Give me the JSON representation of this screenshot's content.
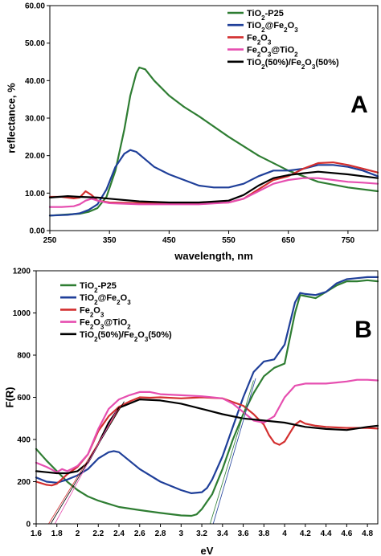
{
  "chart_data": [
    {
      "type": "line",
      "panel_label": "A",
      "xlabel": "wavelength, nm",
      "ylabel": "reflectance, %",
      "xlim": [
        250,
        800
      ],
      "ylim": [
        0,
        60
      ],
      "xticks": [
        250,
        350,
        450,
        550,
        650,
        750
      ],
      "xtick_labels": [
        "250",
        "350",
        "450",
        "550",
        "650",
        "750"
      ],
      "yticks": [
        0,
        10,
        20,
        30,
        40,
        50,
        60
      ],
      "ytick_labels": [
        "0.00",
        "10.00",
        "20.00",
        "30.00",
        "40.00",
        "50.00",
        "60.00"
      ],
      "grid": false,
      "legend_position": "top-right",
      "series": [
        {
          "name": "TiO2-P25",
          "name_base": "TiO",
          "name_sub": "2",
          "name_rest": "-P25",
          "color": "#2e7d32",
          "x": [
            250,
            270,
            300,
            315,
            330,
            345,
            360,
            375,
            385,
            395,
            400,
            410,
            425,
            450,
            475,
            500,
            550,
            600,
            650,
            700,
            750,
            800
          ],
          "y": [
            4,
            4.2,
            4.5,
            5,
            6,
            9,
            16,
            27,
            36,
            42,
            43.5,
            43,
            40,
            36,
            33,
            30.5,
            25,
            20,
            16,
            13,
            11.5,
            10.5
          ]
        },
        {
          "name": "TiO2@Fe2O3",
          "name_base": "TiO",
          "name_sub": "2",
          "name_rest": "@Fe",
          "name_sub2": "2",
          "name_rest2": "O",
          "name_sub3": "3",
          "color": "#1f3f99",
          "x": [
            250,
            280,
            300,
            315,
            330,
            345,
            360,
            375,
            385,
            395,
            410,
            425,
            450,
            475,
            500,
            525,
            550,
            575,
            600,
            625,
            650,
            675,
            700,
            725,
            750,
            775,
            800
          ],
          "y": [
            4,
            4.2,
            4.6,
            5.5,
            7,
            11,
            17,
            20.5,
            21.5,
            21,
            19,
            17,
            15,
            13.5,
            12,
            11.5,
            11.5,
            12.5,
            14.5,
            16,
            16,
            16.5,
            17.5,
            17.5,
            17,
            16,
            14.5
          ]
        },
        {
          "name": "Fe2O3",
          "name_base": "Fe",
          "name_sub": "2",
          "name_rest": "O",
          "name_sub2": "3",
          "color": "#d32f2f",
          "x": [
            250,
            270,
            290,
            300,
            310,
            320,
            330,
            350,
            400,
            450,
            500,
            550,
            575,
            600,
            625,
            650,
            675,
            700,
            725,
            750,
            775,
            800
          ],
          "y": [
            9,
            9,
            8.6,
            8.8,
            10.5,
            9.5,
            8,
            7.5,
            7.3,
            7.2,
            7.2,
            7.5,
            8.5,
            11,
            13.5,
            14.5,
            16.5,
            18,
            18.2,
            17.5,
            16.5,
            15.5
          ]
        },
        {
          "name": "Fe2O3@TiO2",
          "name_base": "Fe",
          "name_sub": "2",
          "name_rest": "O",
          "name_sub2": "3",
          "name_rest2": "@TiO",
          "name_sub3": "2",
          "color": "#e64fb0",
          "x": [
            250,
            270,
            290,
            300,
            310,
            320,
            330,
            350,
            400,
            450,
            500,
            550,
            575,
            600,
            625,
            650,
            675,
            700,
            725,
            750,
            775,
            800
          ],
          "y": [
            6.3,
            6.3,
            6.5,
            7,
            8,
            8.5,
            8,
            7.3,
            7,
            7,
            7,
            7.5,
            8.5,
            10.5,
            12.5,
            13.5,
            14,
            14,
            13.5,
            13,
            12.8,
            12.5
          ]
        },
        {
          "name": "TiO2(50%)/Fe2O3(50%)",
          "name_base": "TiO",
          "name_sub": "2",
          "name_rest": "(50%)/Fe",
          "name_sub2": "2",
          "name_rest2": "O",
          "name_sub3": "3",
          "name_rest3": "(50%)",
          "color": "#000000",
          "x": [
            250,
            280,
            300,
            330,
            350,
            400,
            450,
            500,
            550,
            575,
            600,
            625,
            650,
            675,
            700,
            750,
            800
          ],
          "y": [
            8.8,
            9.2,
            9,
            8.8,
            8.5,
            7.8,
            7.5,
            7.5,
            8,
            9.5,
            12,
            14,
            14.8,
            15.3,
            15.7,
            15,
            14
          ]
        }
      ]
    },
    {
      "type": "line",
      "panel_label": "B",
      "xlabel": "eV",
      "ylabel": "F(R)",
      "xlim": [
        1.6,
        4.9
      ],
      "ylim": [
        0,
        1200
      ],
      "xticks": [
        1.6,
        1.8,
        2,
        2.2,
        2.4,
        2.6,
        2.8,
        3,
        3.2,
        3.4,
        3.6,
        3.8,
        4,
        4.2,
        4.4,
        4.6,
        4.8
      ],
      "xtick_labels": [
        "1.6",
        "1.8",
        "2",
        "2.2",
        "2.4",
        "2.6",
        "2.8",
        "3",
        "3.2",
        "3.4",
        "3.6",
        "3.8",
        "4",
        "4.2",
        "4.4",
        "4.6",
        "4.8"
      ],
      "yticks": [
        0,
        200,
        400,
        600,
        800,
        1000,
        1200
      ],
      "ytick_labels": [
        "0",
        "200",
        "400",
        "600",
        "800",
        "1000",
        "1200"
      ],
      "grid": false,
      "legend_position": "top-left",
      "series": [
        {
          "name": "TiO2-P25",
          "name_base": "TiO",
          "name_sub": "2",
          "name_rest": "-P25",
          "color": "#2e7d32",
          "x": [
            1.6,
            1.7,
            1.8,
            1.9,
            2,
            2.1,
            2.2,
            2.4,
            2.6,
            2.8,
            3,
            3.1,
            3.15,
            3.2,
            3.3,
            3.4,
            3.5,
            3.6,
            3.7,
            3.8,
            3.9,
            4,
            4.1,
            4.15,
            4.2,
            4.3,
            4.4,
            4.5,
            4.6,
            4.7,
            4.8,
            4.9
          ],
          "y": [
            355,
            300,
            250,
            200,
            160,
            130,
            110,
            80,
            65,
            52,
            40,
            38,
            45,
            70,
            140,
            260,
            400,
            520,
            620,
            700,
            740,
            760,
            1000,
            1085,
            1080,
            1070,
            1100,
            1130,
            1150,
            1150,
            1155,
            1150
          ]
        },
        {
          "name": "TiO2@Fe2O3",
          "name_base": "TiO",
          "name_sub": "2",
          "name_rest": "@Fe",
          "name_sub2": "2",
          "name_rest2": "O",
          "name_sub3": "3",
          "color": "#1f3f99",
          "x": [
            1.6,
            1.7,
            1.8,
            1.9,
            2,
            2.1,
            2.2,
            2.3,
            2.35,
            2.4,
            2.5,
            2.6,
            2.8,
            3,
            3.1,
            3.2,
            3.25,
            3.3,
            3.4,
            3.5,
            3.6,
            3.7,
            3.8,
            3.9,
            4,
            4.1,
            4.15,
            4.2,
            4.3,
            4.4,
            4.5,
            4.6,
            4.7,
            4.8,
            4.9
          ],
          "y": [
            220,
            200,
            195,
            210,
            230,
            260,
            310,
            340,
            345,
            340,
            300,
            260,
            200,
            160,
            145,
            150,
            170,
            210,
            320,
            460,
            600,
            720,
            770,
            780,
            850,
            1050,
            1095,
            1090,
            1085,
            1100,
            1140,
            1160,
            1165,
            1170,
            1170
          ]
        },
        {
          "name": "Fe2O3",
          "name_base": "Fe",
          "name_sub": "2",
          "name_rest": "O",
          "name_sub2": "3",
          "color": "#d32f2f",
          "x": [
            1.6,
            1.7,
            1.75,
            1.8,
            1.9,
            2,
            2.1,
            2.2,
            2.3,
            2.4,
            2.5,
            2.6,
            2.7,
            2.8,
            3,
            3.2,
            3.4,
            3.6,
            3.7,
            3.8,
            3.85,
            3.9,
            3.95,
            4,
            4.05,
            4.1,
            4.15,
            4.2,
            4.3,
            4.4,
            4.6,
            4.8,
            4.9
          ],
          "y": [
            200,
            185,
            182,
            190,
            235,
            270,
            330,
            440,
            510,
            555,
            580,
            600,
            598,
            600,
            595,
            600,
            595,
            560,
            520,
            470,
            420,
            385,
            375,
            390,
            430,
            470,
            488,
            475,
            465,
            460,
            455,
            455,
            452
          ]
        },
        {
          "name": "Fe2O3@TiO2",
          "name_base": "Fe",
          "name_sub": "2",
          "name_rest": "O",
          "name_sub2": "3",
          "name_rest2": "@TiO",
          "name_sub3": "2",
          "color": "#e64fb0",
          "x": [
            1.6,
            1.7,
            1.8,
            1.85,
            1.9,
            1.95,
            2,
            2.1,
            2.2,
            2.3,
            2.4,
            2.5,
            2.6,
            2.7,
            2.8,
            3,
            3.2,
            3.3,
            3.4,
            3.5,
            3.6,
            3.7,
            3.8,
            3.9,
            4,
            4.1,
            4.2,
            4.3,
            4.4,
            4.5,
            4.6,
            4.7,
            4.8,
            4.9
          ],
          "y": [
            290,
            270,
            245,
            260,
            250,
            262,
            275,
            330,
            450,
            545,
            590,
            610,
            625,
            625,
            615,
            610,
            605,
            600,
            595,
            570,
            530,
            490,
            480,
            510,
            600,
            655,
            665,
            665,
            665,
            670,
            675,
            683,
            683,
            680
          ]
        },
        {
          "name": "TiO2(50%)/Fe2O3(50%)",
          "name_base": "TiO",
          "name_sub": "2",
          "name_rest": "(50%)/Fe",
          "name_sub2": "2",
          "name_rest2": "O",
          "name_sub3": "3",
          "name_rest3": "(50%)",
          "color": "#000000",
          "x": [
            1.6,
            1.7,
            1.8,
            1.9,
            2,
            2.1,
            2.2,
            2.3,
            2.4,
            2.5,
            2.6,
            2.8,
            3,
            3.2,
            3.4,
            3.6,
            3.8,
            4,
            4.2,
            4.4,
            4.6,
            4.8,
            4.9
          ],
          "y": [
            250,
            245,
            240,
            240,
            250,
            290,
            380,
            480,
            550,
            570,
            590,
            585,
            570,
            545,
            520,
            500,
            490,
            480,
            460,
            450,
            445,
            460,
            465
          ]
        }
      ]
    }
  ]
}
